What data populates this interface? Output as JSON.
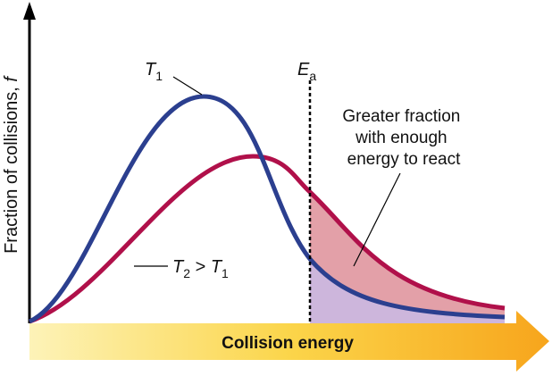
{
  "y_axis_label": {
    "text": "Fraction of collisions, ",
    "symbol": "f"
  },
  "x_axis_label": "Collision energy",
  "activation_energy": {
    "symbol": "E",
    "subscript": "a"
  },
  "curve_t1": {
    "symbol": "T",
    "subscript": "1"
  },
  "curve_t2": {
    "symbol": "T",
    "subscript": "2",
    "relation": " > ",
    "other_symbol": "T",
    "other_subscript": "1"
  },
  "annotation": {
    "lines": [
      "Greater fraction",
      "with enough",
      "energy to react"
    ]
  }
}
